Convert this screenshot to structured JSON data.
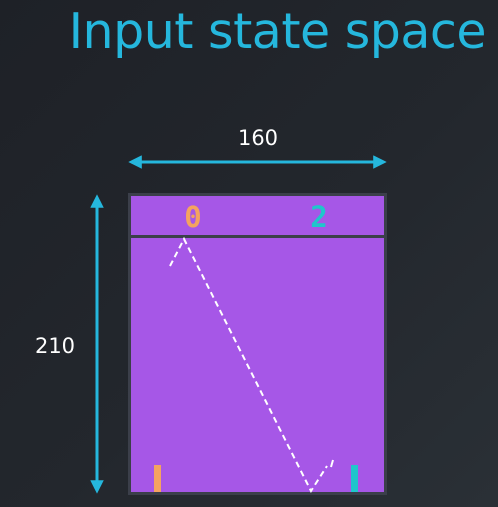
{
  "slide": {
    "title": "Input state space"
  },
  "dimensions": {
    "width_label": "160",
    "height_label": "210"
  },
  "game": {
    "left_score": "0",
    "right_score": "2"
  },
  "colors": {
    "background": "#23272d",
    "accent": "#25b7dd",
    "field": "#a657e7",
    "border": "#3b3f4a",
    "left_player": "#f4a360",
    "right_player": "#1fc6cb",
    "trajectory": "#ffffff"
  }
}
